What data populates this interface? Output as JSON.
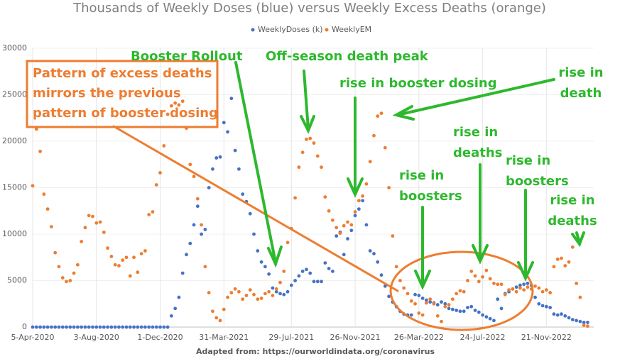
{
  "chart_data": {
    "type": "scatter",
    "title": "Thousands of Weekly Doses (blue) versus Weekly Excess Deaths (orange)",
    "source": "Adapted from: https://ourworldindata.org/coronavirus",
    "legend": "top",
    "grid": true,
    "categories": [
      "5-Apr-2020",
      null,
      null,
      null,
      null,
      null,
      null,
      null,
      null,
      null,
      null,
      null,
      null,
      null,
      null,
      null,
      null,
      "3-Aug-2020",
      null,
      null,
      null,
      null,
      null,
      null,
      null,
      null,
      null,
      null,
      null,
      null,
      null,
      null,
      null,
      null,
      "1-Dec-2020",
      null,
      null,
      null,
      null,
      null,
      null,
      null,
      null,
      null,
      null,
      null,
      null,
      null,
      null,
      null,
      null,
      "31-Mar-2021",
      null,
      null,
      null,
      null,
      null,
      null,
      null,
      null,
      null,
      null,
      null,
      null,
      null,
      null,
      null,
      null,
      null,
      "29-Jul-2021",
      null,
      null,
      null,
      null,
      null,
      null,
      null,
      null,
      null,
      null,
      null,
      null,
      null,
      null,
      null,
      null,
      "26-Nov-2021",
      null,
      null,
      null,
      null,
      null,
      null,
      null,
      null,
      null,
      null,
      null,
      null,
      null,
      null,
      null,
      null,
      "26-Mar-2022",
      null,
      null,
      null,
      null,
      null,
      null,
      null,
      null,
      null,
      null,
      null,
      null,
      null,
      null,
      null,
      null,
      "24-Jul-2022",
      null,
      null,
      null,
      null,
      null,
      null,
      null,
      null,
      null,
      null,
      null,
      null,
      null,
      null,
      null,
      null,
      "21-Nov-2022",
      null,
      null,
      null,
      null,
      null,
      null,
      null,
      null,
      null,
      null,
      null
    ],
    "series": [
      {
        "name": "WeeklyDoses (k)",
        "color": "#4472c4",
        "values": [
          0,
          0,
          0,
          0,
          0,
          0,
          0,
          0,
          0,
          0,
          0,
          0,
          0,
          0,
          0,
          0,
          0,
          0,
          0,
          0,
          0,
          0,
          0,
          0,
          0,
          0,
          0,
          0,
          0,
          0,
          0,
          0,
          0,
          0,
          0,
          0,
          0,
          1200,
          2000,
          3200,
          5800,
          7800,
          9000,
          11000,
          13000,
          10000,
          10500,
          15000,
          17000,
          18200,
          18300,
          22000,
          21000,
          24600,
          19000,
          17000,
          14300,
          13500,
          12200,
          10000,
          8200,
          7000,
          6500,
          5700,
          4200,
          3800,
          3600,
          3500,
          3800,
          4500,
          5000,
          5500,
          6000,
          6200,
          5800,
          4900,
          4900,
          4900,
          6900,
          6300,
          6000,
          9800,
          10200,
          7800,
          9500,
          10400,
          12000,
          12700,
          13600,
          11000,
          8200,
          7900,
          7000,
          5600,
          4400,
          3300,
          2700,
          2200,
          1700,
          1400,
          1300,
          1300,
          3500,
          3400,
          3100,
          2900,
          2700,
          2600,
          2400,
          2700,
          2500,
          2000,
          1900,
          1800,
          1700,
          1700,
          2100,
          2200,
          1800,
          1600,
          1300,
          1100,
          900,
          700,
          3000,
          2000,
          3600,
          3800,
          4100,
          4300,
          4500,
          4600,
          4700,
          4500,
          3200,
          2500,
          2300,
          2200,
          2100,
          1400,
          1300,
          1400,
          1200,
          1000,
          800,
          700,
          600,
          500,
          500
        ]
      },
      {
        "name": "WeeklyEM",
        "color": "#ed7d31",
        "values": [
          15200,
          21300,
          18900,
          14300,
          12700,
          10800,
          8000,
          6500,
          5300,
          4900,
          5000,
          5800,
          6700,
          9200,
          10700,
          12000,
          11900,
          11200,
          11300,
          10200,
          8500,
          7600,
          6700,
          6600,
          7200,
          7500,
          5500,
          7500,
          5900,
          7900,
          8200,
          12100,
          12400,
          15300,
          16600,
          19500,
          22900,
          23800,
          24100,
          23900,
          24300,
          21400,
          17500,
          16200,
          13800,
          11000,
          6500,
          3700,
          1700,
          1000,
          700,
          1900,
          3200,
          3700,
          4100,
          3800,
          3000,
          3400,
          4000,
          3500,
          3000,
          3100,
          3600,
          3800,
          3400,
          4100,
          4800,
          6000,
          9100,
          10600,
          13900,
          17200,
          18800,
          20200,
          20300,
          19800,
          18400,
          17200,
          14000,
          12500,
          11500,
          10700,
          10100,
          10900,
          11300,
          11000,
          12400,
          13600,
          14100,
          15400,
          17800,
          20600,
          22700,
          23000,
          19300,
          15000,
          9800,
          6500,
          5000,
          4200,
          3600,
          2800,
          2500,
          1500,
          1300,
          2600,
          3000,
          2500,
          1200,
          600,
          2200,
          2400,
          3000,
          3600,
          3900,
          3800,
          5000,
          6000,
          5500,
          4900,
          5400,
          6100,
          5200,
          4700,
          4600,
          4600,
          3500,
          4000,
          4100,
          3800,
          4200,
          4000,
          4300,
          4100,
          4400,
          4200,
          3800,
          4000,
          3700,
          6500,
          7300,
          7400,
          6600,
          7000,
          8600,
          4700,
          3200,
          200,
          100
        ]
      }
    ],
    "ylim": [
      0,
      30000
    ],
    "yticks": [
      0,
      5000,
      10000,
      15000,
      20000,
      25000,
      30000
    ],
    "annotations": [
      [
        "Booster Rollout"
      ],
      [
        "Off-season death peak"
      ],
      [
        "rise in booster dosing"
      ],
      [
        "rise in",
        "death"
      ],
      [
        "rise in",
        "boosters"
      ],
      [
        "rise in",
        "deaths"
      ],
      [
        "rise in",
        "boosters"
      ],
      [
        "rise in",
        "deaths"
      ]
    ],
    "callout": [
      "Pattern of excess deaths",
      "mirrors the previous",
      "pattern of booster dosing"
    ]
  }
}
